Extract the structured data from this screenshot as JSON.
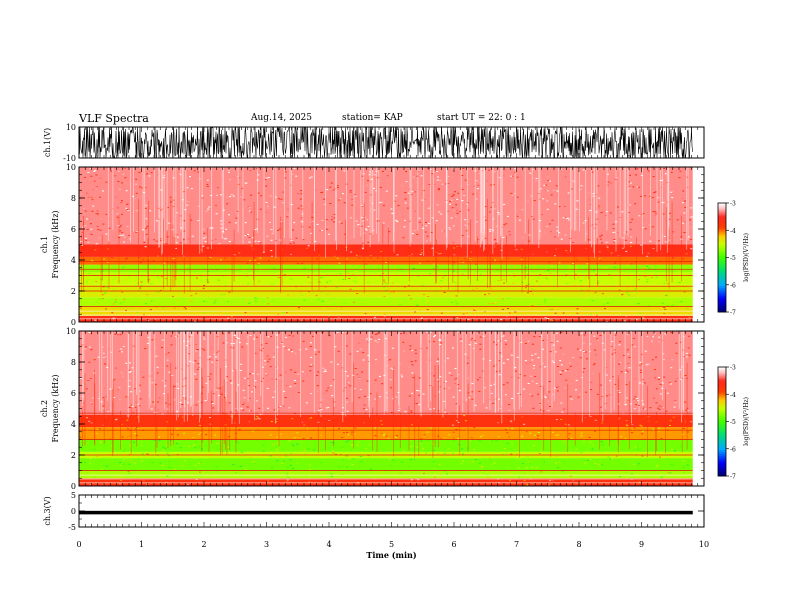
{
  "header": {
    "title": "VLF Spectra",
    "date": "Aug.14, 2025",
    "station": "station= KAP",
    "start_ut": "start UT =  22: 0 : 1"
  },
  "colors": {
    "trace": "#000000",
    "spectrum_low": "#00ff00",
    "spectrum_mid": "#ff0000",
    "spectrum_high": "#ffffff"
  },
  "chart_data": [
    {
      "type": "line",
      "name": "ch1-waveform",
      "ylabel": "ch.1(V)",
      "ylim": [
        -10,
        10
      ],
      "yticks": [
        {
          "v": 10,
          "label": "10"
        },
        {
          "v": -10,
          "label": "-10"
        }
      ],
      "xlim": [
        0,
        10
      ],
      "description": "waveform filling full range"
    },
    {
      "type": "heatmap",
      "name": "ch1-spectrogram",
      "ylabel": "ch.1  Frequency (kHz)",
      "ylim": [
        0,
        10
      ],
      "yticks": [
        {
          "v": 10,
          "label": "10"
        },
        {
          "v": 8,
          "label": "8"
        },
        {
          "v": 6,
          "label": "6"
        },
        {
          "v": 4,
          "label": "4"
        },
        {
          "v": 2,
          "label": "2"
        },
        {
          "v": 0,
          "label": "0"
        }
      ],
      "xlim": [
        0,
        10
      ],
      "data_end_min": 9.82,
      "bands": [
        {
          "from": 0.0,
          "to": 0.4,
          "level": -3.6
        },
        {
          "from": 0.4,
          "to": 1.0,
          "level": -4.3
        },
        {
          "from": 1.0,
          "to": 1.6,
          "level": -4.6
        },
        {
          "from": 1.6,
          "to": 2.4,
          "level": -4.4
        },
        {
          "from": 2.4,
          "to": 3.2,
          "level": -4.5
        },
        {
          "from": 3.2,
          "to": 3.7,
          "level": -4.7
        },
        {
          "from": 3.7,
          "to": 4.2,
          "level": -4.0
        },
        {
          "from": 4.2,
          "to": 5.0,
          "level": -3.6
        },
        {
          "from": 5.0,
          "to": 10.0,
          "level": -3.3
        }
      ],
      "lines_khz": [
        1.0,
        2.0,
        2.3,
        3.0,
        3.4,
        3.9
      ]
    },
    {
      "type": "heatmap",
      "name": "ch2-spectrogram",
      "ylabel": "ch.2  Frequency (kHz)",
      "ylim": [
        0,
        10
      ],
      "yticks": [
        {
          "v": 10,
          "label": "10"
        },
        {
          "v": 8,
          "label": "8"
        },
        {
          "v": 6,
          "label": "6"
        },
        {
          "v": 4,
          "label": "4"
        },
        {
          "v": 2,
          "label": "2"
        },
        {
          "v": 0,
          "label": "0"
        }
      ],
      "xlim": [
        0,
        10
      ],
      "data_end_min": 9.82,
      "bands": [
        {
          "from": 0.0,
          "to": 0.5,
          "level": -3.7
        },
        {
          "from": 0.5,
          "to": 1.0,
          "level": -4.6
        },
        {
          "from": 1.0,
          "to": 1.8,
          "level": -4.8
        },
        {
          "from": 1.8,
          "to": 2.2,
          "level": -4.5
        },
        {
          "from": 2.2,
          "to": 3.0,
          "level": -4.8
        },
        {
          "from": 3.0,
          "to": 3.8,
          "level": -4.1
        },
        {
          "from": 3.8,
          "to": 4.6,
          "level": -3.7
        },
        {
          "from": 4.6,
          "to": 10.0,
          "level": -3.3
        }
      ],
      "lines_khz": [
        1.0,
        2.0,
        3.0,
        3.6,
        4.7
      ]
    },
    {
      "type": "line",
      "name": "ch3-waveform",
      "ylabel": "ch.3(V)",
      "ylim": [
        -5,
        5
      ],
      "yticks": [
        {
          "v": 5,
          "label": "5"
        },
        {
          "v": 0,
          "label": "0"
        },
        {
          "v": -5,
          "label": "-5"
        }
      ],
      "xlim": [
        0,
        10
      ],
      "xlabel": "Time  (min)",
      "xticks": [
        "0",
        "1",
        "2",
        "3",
        "4",
        "5",
        "6",
        "7",
        "8",
        "9",
        "10"
      ],
      "band_center": -0.5,
      "band_halfwidth": 0.55
    }
  ],
  "colorbars": [
    {
      "name": "ch1-colorbar",
      "label": "log(PSD)(V²/Hz)",
      "range": [
        -7,
        -3
      ],
      "ticks": [
        {
          "v": -3,
          "label": "-3"
        },
        {
          "v": -4,
          "label": "-4"
        },
        {
          "v": -5,
          "label": "-5"
        },
        {
          "v": -6,
          "label": "-6"
        },
        {
          "v": -7,
          "label": "-7"
        }
      ]
    },
    {
      "name": "ch2-colorbar",
      "label": "log(PSD)(V²/Hz)",
      "range": [
        -7,
        -3
      ],
      "ticks": [
        {
          "v": -3,
          "label": "-3"
        },
        {
          "v": -4,
          "label": "-4"
        },
        {
          "v": -5,
          "label": "-5"
        },
        {
          "v": -6,
          "label": "-6"
        },
        {
          "v": -7,
          "label": "-7"
        }
      ]
    }
  ]
}
